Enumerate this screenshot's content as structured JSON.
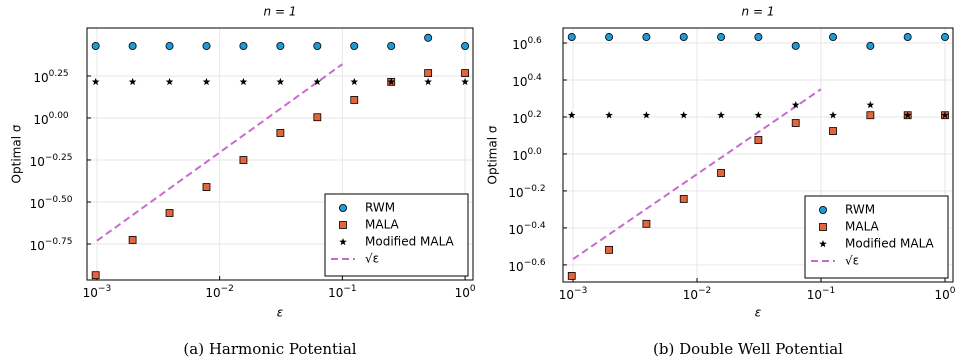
{
  "chart_data": [
    {
      "type": "scatter",
      "title": "n = 1",
      "xlabel": "ε",
      "ylabel": "Optimal σ",
      "caption": "(a) Harmonic Potential",
      "xscale": "log",
      "yscale": "log",
      "grid": true,
      "legend": "lower right",
      "xlim": [
        0.00083,
        1.16
      ],
      "ylim": [
        0.1086,
        3.43
      ],
      "xticks": [
        {
          "value": 0.001,
          "label": "10",
          "exponent": "−3"
        },
        {
          "value": 0.01,
          "label": "10",
          "exponent": "−2"
        },
        {
          "value": 0.1,
          "label": "10",
          "exponent": "−1"
        },
        {
          "value": 1,
          "label": "10",
          "exponent": "0"
        }
      ],
      "yticks": [
        {
          "value": 0.1778,
          "label": "10",
          "exponent": "−0.75"
        },
        {
          "value": 0.3162,
          "label": "10",
          "exponent": "−0.50"
        },
        {
          "value": 0.5623,
          "label": "10",
          "exponent": "−0.25"
        },
        {
          "value": 1,
          "label": "10",
          "exponent": "0.00"
        },
        {
          "value": 1.7783,
          "label": "10",
          "exponent": "0.25"
        }
      ],
      "x": [
        0.0009765625,
        0.001953125,
        0.00390625,
        0.0078125,
        0.015625,
        0.03125,
        0.0625,
        0.125,
        0.25,
        0.5,
        1
      ],
      "series": [
        {
          "name": "RWM",
          "marker": "circle",
          "color": "#1f9ad8",
          "values": [
            2.68,
            2.68,
            2.68,
            2.68,
            2.68,
            2.68,
            2.68,
            2.68,
            2.68,
            3.0,
            2.68
          ]
        },
        {
          "name": "MALA",
          "marker": "square",
          "color": "#e2653e",
          "values": [
            0.116,
            0.188,
            0.272,
            0.388,
            0.562,
            0.814,
            1.01,
            1.28,
            1.64,
            1.85,
            1.85
          ]
        },
        {
          "name": "Modified MALA",
          "marker": "star",
          "color": "#000000",
          "values": [
            1.64,
            1.64,
            1.64,
            1.64,
            1.64,
            1.64,
            1.64,
            1.64,
            1.64,
            1.64,
            1.64
          ]
        },
        {
          "name": "√ε",
          "marker": "dashed-line",
          "color": "#c86ad2",
          "x": [
            0.001,
            0.1
          ],
          "values": [
            0.186,
            2.09
          ]
        }
      ]
    },
    {
      "type": "scatter",
      "title": "n = 1",
      "xlabel": "ε",
      "ylabel": "Optimal σ",
      "caption": "(b) Double Well Potential",
      "xscale": "log",
      "yscale": "log",
      "grid": true,
      "legend": "lower right",
      "xlim": [
        0.00083,
        1.16
      ],
      "ylim": [
        0.203,
        4.8
      ],
      "xticks": [
        {
          "value": 0.001,
          "label": "10",
          "exponent": "−3"
        },
        {
          "value": 0.01,
          "label": "10",
          "exponent": "−2"
        },
        {
          "value": 0.1,
          "label": "10",
          "exponent": "−1"
        },
        {
          "value": 1,
          "label": "10",
          "exponent": "0"
        }
      ],
      "yticks": [
        {
          "value": 0.2512,
          "label": "10",
          "exponent": "−0.6"
        },
        {
          "value": 0.3981,
          "label": "10",
          "exponent": "−0.4"
        },
        {
          "value": 0.631,
          "label": "10",
          "exponent": "−0.2"
        },
        {
          "value": 1,
          "label": "10",
          "exponent": "0.0"
        },
        {
          "value": 1.5849,
          "label": "10",
          "exponent": "0.2"
        },
        {
          "value": 2.5119,
          "label": "10",
          "exponent": "0.4"
        },
        {
          "value": 3.9811,
          "label": "10",
          "exponent": "0.6"
        }
      ],
      "x": [
        0.0009765625,
        0.001953125,
        0.00390625,
        0.0078125,
        0.015625,
        0.03125,
        0.0625,
        0.125,
        0.25,
        0.5,
        1
      ],
      "series": [
        {
          "name": "RWM",
          "marker": "circle",
          "color": "#1f9ad8",
          "values": [
            4.29,
            4.29,
            4.29,
            4.29,
            4.29,
            4.29,
            3.84,
            4.29,
            3.84,
            4.29,
            4.29
          ]
        },
        {
          "name": "MALA",
          "marker": "square",
          "color": "#e2653e",
          "values": [
            0.219,
            0.303,
            0.419,
            0.571,
            0.789,
            1.19,
            1.47,
            1.33,
            1.62,
            1.62,
            1.62
          ]
        },
        {
          "name": "Modified MALA",
          "marker": "star",
          "color": "#000000",
          "values": [
            1.62,
            1.62,
            1.62,
            1.62,
            1.62,
            1.62,
            1.84,
            1.62,
            1.84,
            1.62,
            1.62
          ]
        },
        {
          "name": "√ε",
          "marker": "dashed-line",
          "color": "#c86ad2",
          "x": [
            0.001,
            0.1
          ],
          "values": [
            0.27,
            2.24
          ]
        }
      ]
    }
  ]
}
